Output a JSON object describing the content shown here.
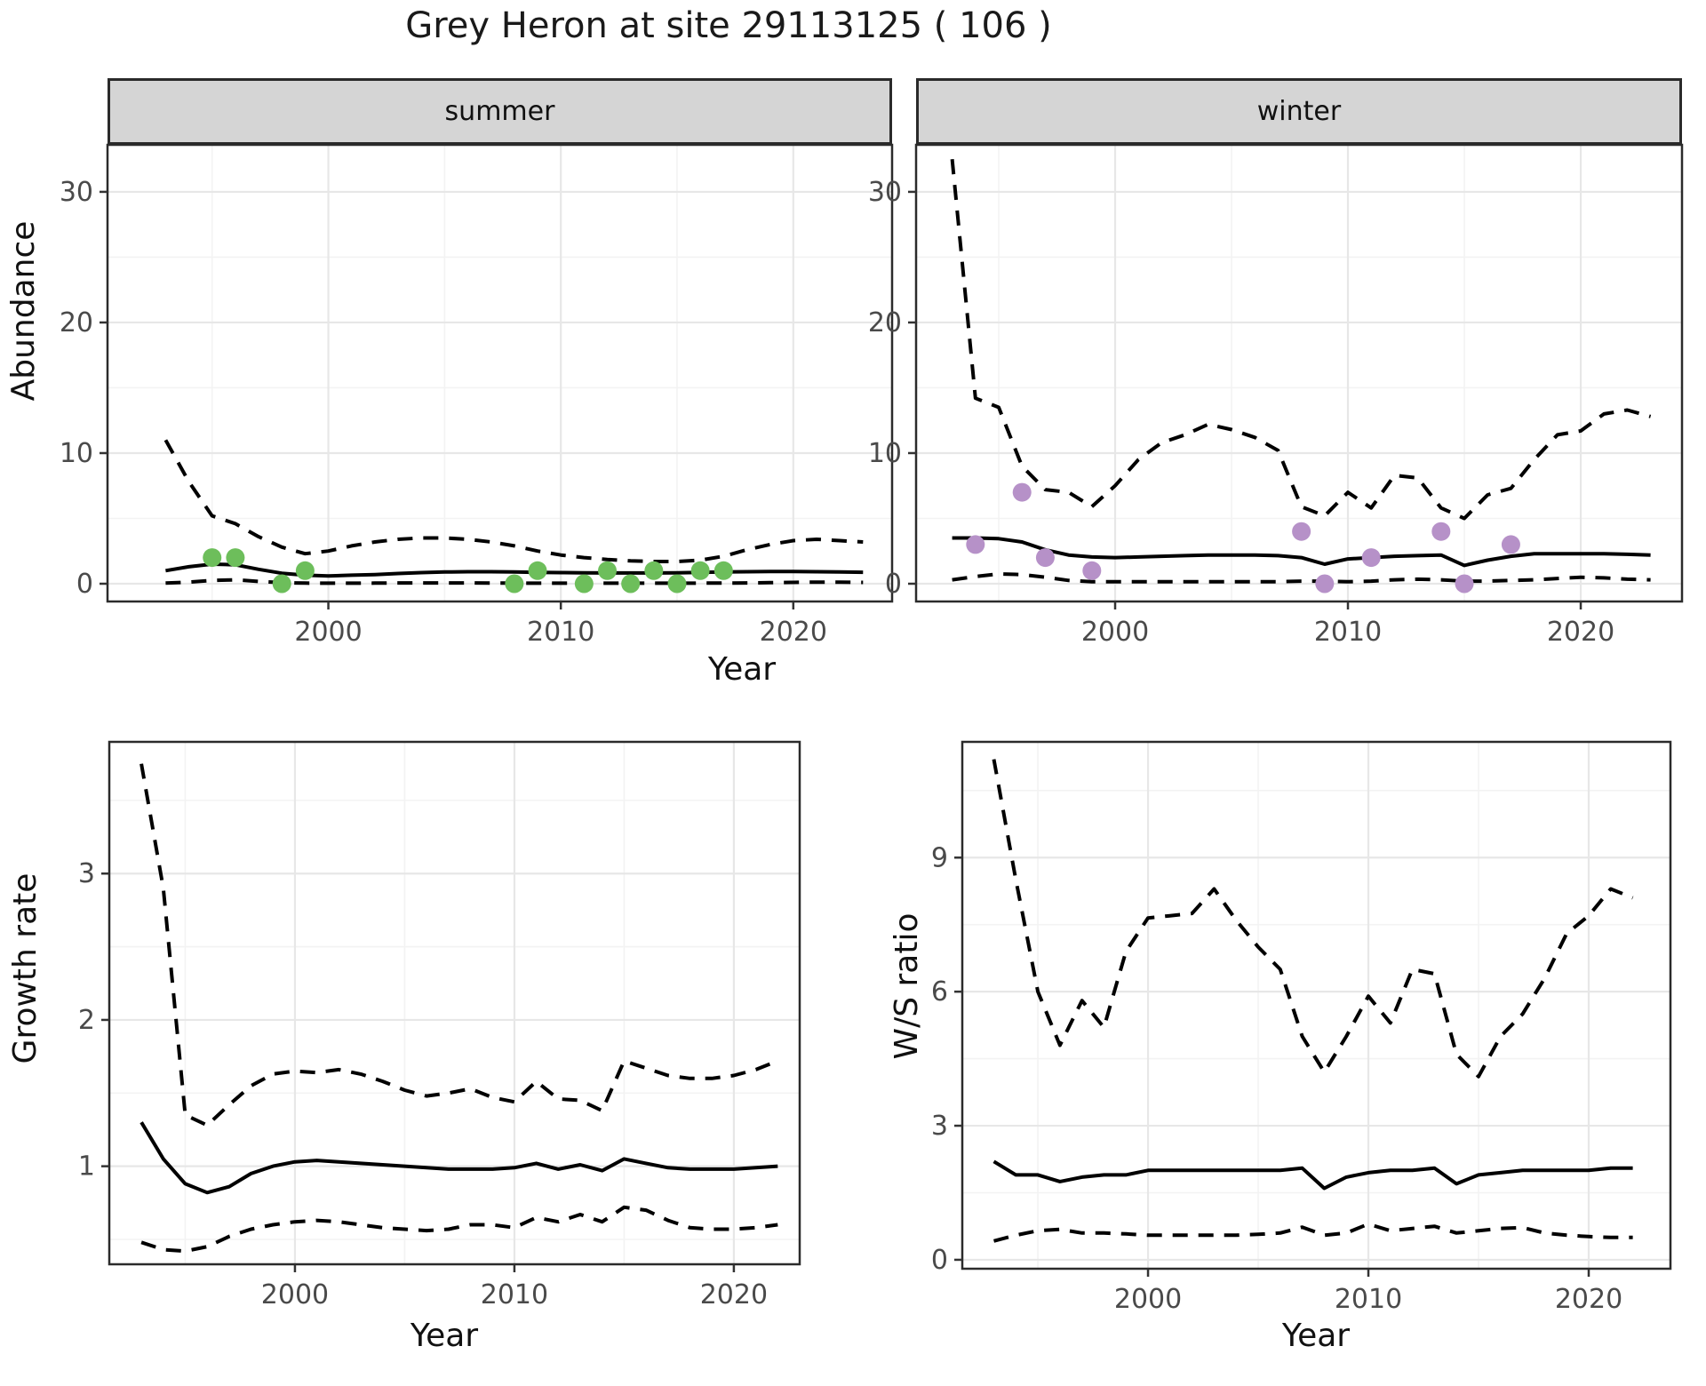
{
  "title": "Grey Heron at site 29113125 ( 106 )",
  "colors": {
    "summer_points": "#6dbe5b",
    "winter_points": "#b691c8",
    "series_line": "#000000",
    "grid_major": "#e7e7e7",
    "grid_minor": "#f3f3f3",
    "panel_border": "#2b2b2b",
    "strip_bg": "#d5d5d5",
    "tick_label": "#4a4a4a",
    "text": "#111111"
  },
  "chart_data": [
    {
      "id": "abundance-summer",
      "type": "line",
      "facet": "summer",
      "ylabel": "Abundance",
      "xlabel": "Year",
      "x_ticks": [
        2000,
        2010,
        2020
      ],
      "y_ticks": [
        0,
        10,
        20,
        30
      ],
      "xlim": [
        1990.5,
        2024.25
      ],
      "ylim": [
        -1.36,
        33.6
      ],
      "grid": true,
      "legend": "none",
      "x": [
        1993,
        1994,
        1995,
        1996,
        1997,
        1998,
        1999,
        2000,
        2001,
        2002,
        2003,
        2004,
        2005,
        2006,
        2007,
        2008,
        2009,
        2010,
        2011,
        2012,
        2013,
        2014,
        2015,
        2016,
        2017,
        2018,
        2019,
        2020,
        2021,
        2022,
        2023
      ],
      "series": [
        {
          "name": "median",
          "style": "solid",
          "values": [
            1.0,
            1.3,
            1.5,
            1.45,
            1.1,
            0.8,
            0.65,
            0.6,
            0.65,
            0.7,
            0.78,
            0.85,
            0.9,
            0.92,
            0.92,
            0.9,
            0.87,
            0.85,
            0.83,
            0.82,
            0.82,
            0.82,
            0.84,
            0.87,
            0.9,
            0.92,
            0.93,
            0.93,
            0.92,
            0.9,
            0.88
          ]
        },
        {
          "name": "upper-ci",
          "style": "dashed",
          "values": [
            11,
            7.8,
            5.2,
            4.6,
            3.6,
            2.8,
            2.3,
            2.5,
            2.9,
            3.2,
            3.4,
            3.5,
            3.5,
            3.4,
            3.2,
            2.9,
            2.5,
            2.2,
            2.0,
            1.85,
            1.75,
            1.7,
            1.7,
            1.8,
            2.1,
            2.6,
            3.0,
            3.3,
            3.4,
            3.3,
            3.2
          ]
        },
        {
          "name": "lower-ci",
          "style": "dashed",
          "values": [
            0.05,
            0.12,
            0.25,
            0.3,
            0.18,
            0.08,
            0.05,
            0.04,
            0.04,
            0.05,
            0.06,
            0.06,
            0.06,
            0.06,
            0.05,
            0.05,
            0.04,
            0.04,
            0.04,
            0.04,
            0.04,
            0.04,
            0.04,
            0.05,
            0.05,
            0.06,
            0.08,
            0.1,
            0.12,
            0.12,
            0.1
          ]
        }
      ],
      "observations": {
        "color": "#6dbe5b",
        "years": [
          1995,
          1996,
          1998,
          1999,
          2008,
          2009,
          2011,
          2012,
          2013,
          2014,
          2015,
          2016,
          2017
        ],
        "values": [
          2,
          2,
          0,
          1,
          0,
          1,
          0,
          1,
          0,
          1,
          0,
          1,
          1
        ]
      }
    },
    {
      "id": "abundance-winter",
      "type": "line",
      "facet": "winter",
      "ylabel": "Abundance",
      "xlabel": "Year",
      "x_ticks": [
        2000,
        2010,
        2020
      ],
      "y_ticks": [
        0,
        10,
        20,
        30
      ],
      "xlim": [
        1991.45,
        2024.35
      ],
      "ylim": [
        -1.36,
        33.6
      ],
      "grid": true,
      "legend": "none",
      "x": [
        1993,
        1994,
        1995,
        1996,
        1997,
        1998,
        1999,
        2000,
        2001,
        2002,
        2003,
        2004,
        2005,
        2006,
        2007,
        2008,
        2009,
        2010,
        2011,
        2012,
        2013,
        2014,
        2015,
        2016,
        2017,
        2018,
        2019,
        2020,
        2021,
        2022,
        2023
      ],
      "series": [
        {
          "name": "median",
          "style": "solid",
          "values": [
            3.5,
            3.5,
            3.45,
            3.2,
            2.6,
            2.2,
            2.05,
            2.0,
            2.05,
            2.1,
            2.15,
            2.2,
            2.2,
            2.2,
            2.15,
            2.0,
            1.5,
            1.9,
            2.0,
            2.1,
            2.15,
            2.2,
            1.4,
            1.8,
            2.1,
            2.3,
            2.3,
            2.3,
            2.3,
            2.25,
            2.2
          ]
        },
        {
          "name": "upper-ci",
          "style": "dashed",
          "values": [
            32.5,
            14.2,
            13.5,
            9.0,
            7.2,
            7.0,
            5.9,
            7.5,
            9.5,
            10.8,
            11.4,
            12.2,
            11.8,
            11.2,
            10.2,
            5.9,
            5.2,
            7.0,
            5.8,
            8.3,
            8.1,
            5.8,
            5.0,
            6.8,
            7.3,
            9.5,
            11.4,
            11.7,
            13.0,
            13.3,
            12.8
          ]
        },
        {
          "name": "lower-ci",
          "style": "dashed",
          "values": [
            0.3,
            0.55,
            0.75,
            0.7,
            0.5,
            0.25,
            0.15,
            0.15,
            0.15,
            0.15,
            0.15,
            0.15,
            0.15,
            0.15,
            0.15,
            0.2,
            0.2,
            0.15,
            0.2,
            0.3,
            0.35,
            0.3,
            0.2,
            0.2,
            0.25,
            0.3,
            0.4,
            0.5,
            0.45,
            0.35,
            0.3
          ]
        }
      ],
      "observations": {
        "color": "#b691c8",
        "years": [
          1994,
          1996,
          1997,
          1999,
          2008,
          2009,
          2011,
          2014,
          2015,
          2017
        ],
        "values": [
          3,
          7,
          2,
          1,
          4,
          0,
          2,
          4,
          0,
          3
        ]
      }
    },
    {
      "id": "growth-rate",
      "type": "line",
      "facet": null,
      "ylabel": "Growth rate",
      "xlabel": "Year",
      "x_ticks": [
        2000,
        2010,
        2020
      ],
      "y_ticks": [
        1,
        2,
        3
      ],
      "xlim": [
        1991.54,
        2023.0
      ],
      "ylim": [
        0.33,
        3.9
      ],
      "grid": true,
      "legend": "none",
      "x": [
        1993,
        1994,
        1995,
        1996,
        1997,
        1998,
        1999,
        2000,
        2001,
        2002,
        2003,
        2004,
        2005,
        2006,
        2007,
        2008,
        2009,
        2010,
        2011,
        2012,
        2013,
        2014,
        2015,
        2016,
        2017,
        2018,
        2019,
        2020,
        2021,
        2022
      ],
      "series": [
        {
          "name": "median",
          "style": "solid",
          "values": [
            1.3,
            1.05,
            0.88,
            0.82,
            0.86,
            0.95,
            1.0,
            1.03,
            1.04,
            1.03,
            1.02,
            1.01,
            1.0,
            0.99,
            0.98,
            0.98,
            0.98,
            0.99,
            1.02,
            0.98,
            1.01,
            0.97,
            1.05,
            1.02,
            0.99,
            0.98,
            0.98,
            0.98,
            0.99,
            1.0
          ]
        },
        {
          "name": "upper-ci",
          "style": "dashed",
          "values": [
            3.75,
            2.9,
            1.35,
            1.28,
            1.42,
            1.55,
            1.63,
            1.65,
            1.64,
            1.66,
            1.63,
            1.58,
            1.52,
            1.48,
            1.5,
            1.53,
            1.47,
            1.44,
            1.58,
            1.46,
            1.45,
            1.38,
            1.72,
            1.67,
            1.62,
            1.6,
            1.6,
            1.62,
            1.66,
            1.72
          ]
        },
        {
          "name": "lower-ci",
          "style": "dashed",
          "values": [
            0.48,
            0.43,
            0.42,
            0.45,
            0.52,
            0.57,
            0.6,
            0.62,
            0.63,
            0.62,
            0.6,
            0.58,
            0.57,
            0.56,
            0.57,
            0.6,
            0.6,
            0.58,
            0.65,
            0.62,
            0.67,
            0.62,
            0.72,
            0.7,
            0.63,
            0.58,
            0.57,
            0.57,
            0.58,
            0.6
          ]
        }
      ]
    },
    {
      "id": "ws-ratio",
      "type": "line",
      "facet": null,
      "ylabel": "W/S ratio",
      "xlabel": "Year",
      "x_ticks": [
        2000,
        2010,
        2020
      ],
      "y_ticks": [
        0,
        3,
        6,
        9
      ],
      "xlim": [
        1991.57,
        2023.71
      ],
      "ylim": [
        -0.2,
        11.59
      ],
      "grid": true,
      "legend": "none",
      "x": [
        1993,
        1994,
        1995,
        1996,
        1997,
        1998,
        1999,
        2000,
        2001,
        2002,
        2003,
        2004,
        2005,
        2006,
        2007,
        2008,
        2009,
        2010,
        2011,
        2012,
        2013,
        2014,
        2015,
        2016,
        2017,
        2018,
        2019,
        2020,
        2021,
        2022
      ],
      "series": [
        {
          "name": "median",
          "style": "solid",
          "values": [
            2.2,
            1.9,
            1.9,
            1.75,
            1.85,
            1.9,
            1.9,
            2.0,
            2.0,
            2.0,
            2.0,
            2.0,
            2.0,
            2.0,
            2.05,
            1.6,
            1.85,
            1.95,
            2.0,
            2.0,
            2.05,
            1.7,
            1.9,
            1.95,
            2.0,
            2.0,
            2.0,
            2.0,
            2.05,
            2.05
          ]
        },
        {
          "name": "upper-ci",
          "style": "dashed",
          "values": [
            11.2,
            8.5,
            6.0,
            4.8,
            5.8,
            5.2,
            6.9,
            7.65,
            7.7,
            7.75,
            8.3,
            7.6,
            7.0,
            6.5,
            5.0,
            4.2,
            5.0,
            5.9,
            5.3,
            6.5,
            6.4,
            4.6,
            4.1,
            5.0,
            5.5,
            6.3,
            7.3,
            7.7,
            8.3,
            8.1
          ]
        },
        {
          "name": "lower-ci",
          "style": "dashed",
          "values": [
            0.42,
            0.55,
            0.65,
            0.68,
            0.6,
            0.6,
            0.58,
            0.55,
            0.55,
            0.55,
            0.55,
            0.55,
            0.57,
            0.6,
            0.73,
            0.55,
            0.6,
            0.8,
            0.65,
            0.7,
            0.75,
            0.6,
            0.65,
            0.7,
            0.72,
            0.6,
            0.55,
            0.52,
            0.5,
            0.5
          ]
        }
      ]
    }
  ]
}
